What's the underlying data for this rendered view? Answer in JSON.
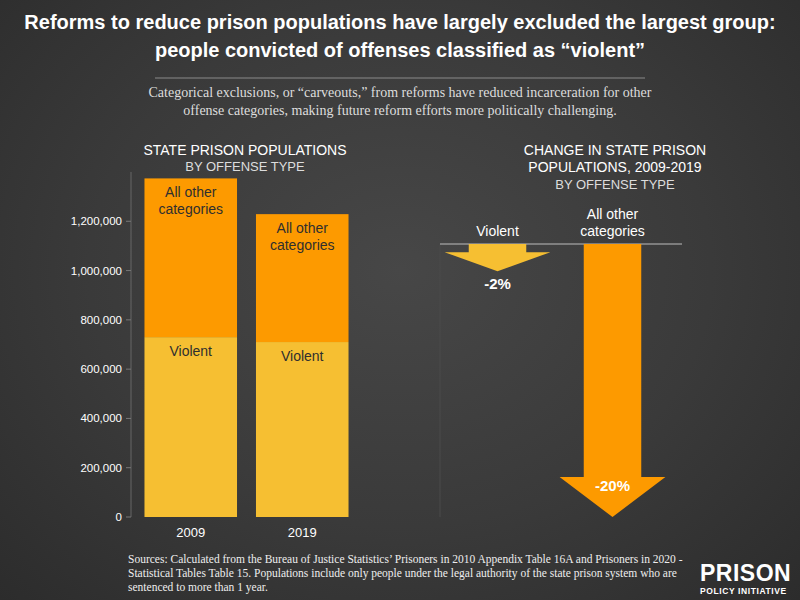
{
  "title": "Reforms to reduce prison populations have largely excluded the largest group: people convicted of offenses classified as “violent”",
  "subtitle": "Categorical exclusions, or “carveouts,” from reforms have reduced incarceration for other offense categories, making future reform efforts more politically challenging.",
  "source": "Sources: Calculated from the Bureau of Justice Statistics’ Prisoners in 2010 Appendix Table 16A and Prisoners in 2020 - Statistical Tables Table 15. Populations include only people under the legal authority of the state prison system who are sentenced to more than 1 year.",
  "logo": [
    "PRISON",
    "POLICY INITIATIVE"
  ],
  "chart_data": [
    {
      "type": "bar",
      "stacked": true,
      "grid": false,
      "title": "STATE PRISON POPULATIONS",
      "subtitle": "BY OFFENSE TYPE",
      "categories": [
        "2009",
        "2019"
      ],
      "series": [
        {
          "name": "Violent",
          "color": "#f6bf32",
          "values": [
            730000,
            710000
          ]
        },
        {
          "name": "All other categories",
          "color": "#fd9a00",
          "values": [
            644000,
            519000
          ]
        }
      ],
      "ylim": [
        0,
        1400000
      ],
      "yticks": [
        0,
        {
          "value": 200000,
          "label": "200,000"
        },
        {
          "value": 400000,
          "label": "400,000"
        },
        {
          "value": 600000,
          "label": "600,000"
        },
        {
          "value": 800000,
          "label": "800,000"
        },
        {
          "value": 1000000,
          "label": "1,000,000"
        },
        {
          "value": 1200000,
          "label": "1,200,000"
        }
      ]
    },
    {
      "type": "arrow",
      "data_labels": true,
      "tick_labels": false,
      "title": "CHANGE IN STATE PRISON POPULATIONS, 2009-2019",
      "subtitle": "BY OFFENSE TYPE",
      "categories": [
        "Violent",
        "All other categories"
      ],
      "values": [
        -2,
        -20
      ],
      "value_labels": [
        "-2%",
        "-20%"
      ],
      "colors": [
        "#f6bf32",
        "#fd9a00"
      ],
      "ylim": [
        -20,
        0
      ],
      "yticks": [
        0
      ]
    }
  ]
}
